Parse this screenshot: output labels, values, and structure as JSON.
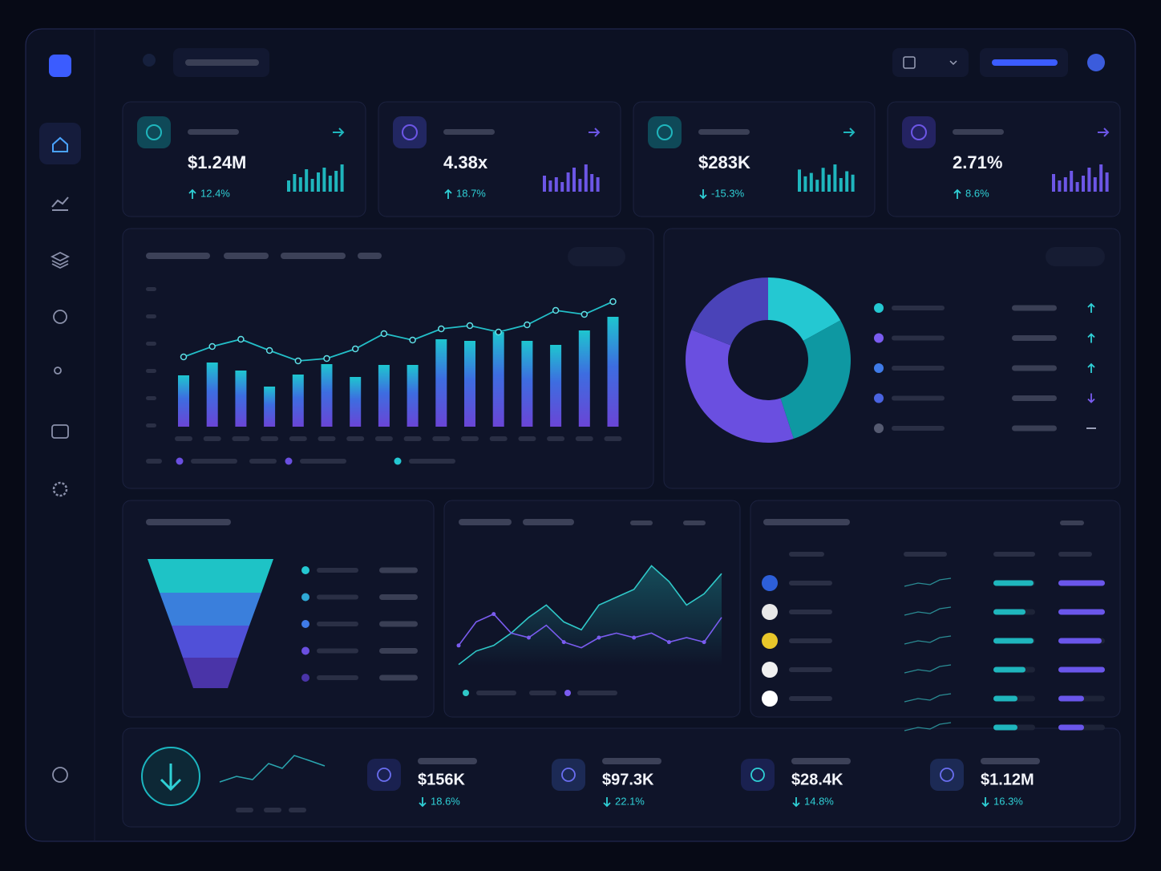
{
  "kpis": [
    {
      "value": "$1.24M",
      "change": "12.4%",
      "trend": "up",
      "icon_color": "#0f8a92",
      "spark_color": "#1fb6bd",
      "spark": [
        14,
        22,
        18,
        28,
        16,
        24,
        30,
        20,
        26,
        34
      ]
    },
    {
      "value": "4.38x",
      "change": "18.7%",
      "trend": "up",
      "icon_color": "#3a3fa8",
      "spark_color": "#6c56e6",
      "spark": [
        20,
        14,
        18,
        12,
        24,
        30,
        16,
        34,
        22,
        18
      ]
    },
    {
      "value": "$283K",
      "change": "-15.3%",
      "trend": "down",
      "icon_color": "#0f8a92",
      "spark_color": "#1fb6bd",
      "spark": [
        26,
        18,
        22,
        14,
        28,
        20,
        32,
        16,
        24,
        20
      ]
    },
    {
      "value": "2.71%",
      "change": "8.6%",
      "trend": "up",
      "icon_color": "#3f36a8",
      "spark_color": "#6c56e6",
      "spark": [
        22,
        14,
        18,
        26,
        12,
        20,
        30,
        18,
        34,
        24
      ]
    }
  ],
  "revenue_chart": {
    "type": "bar",
    "ylim": [
      0,
      180
    ],
    "values": [
      64,
      80,
      70,
      50,
      65,
      78,
      62,
      77,
      77,
      109,
      107,
      118,
      107,
      102,
      120,
      137
    ],
    "line": [
      87,
      100,
      109,
      95,
      82,
      85,
      97,
      116,
      108,
      122,
      126,
      118,
      127,
      145,
      140,
      156
    ]
  },
  "share_chart": {
    "type": "pie",
    "values": [
      17,
      28,
      36,
      19
    ],
    "colors": [
      "#24c8d2",
      "#0e98a2",
      "#6a4fe0",
      "#4a43b8"
    ]
  },
  "trend_chart": {
    "type": "line",
    "ylim": [
      0,
      100
    ],
    "series": [
      {
        "color": "#2fc8c8",
        "values": [
          1,
          13,
          18,
          29,
          43,
          54,
          39,
          32,
          54,
          61,
          68,
          89,
          75,
          54,
          64,
          82
        ]
      },
      {
        "color": "#7a5cf0",
        "values": [
          18,
          39,
          46,
          29,
          25,
          36,
          21,
          16,
          25,
          29,
          25,
          29,
          21,
          25,
          21,
          43
        ]
      }
    ]
  },
  "stats": [
    {
      "value": "$156K",
      "change": "18.6%"
    },
    {
      "value": "$97.3K",
      "change": "22.1%"
    },
    {
      "value": "$28.4K",
      "change": "14.8%"
    },
    {
      "value": "$1.12M",
      "change": "16.3%"
    }
  ]
}
